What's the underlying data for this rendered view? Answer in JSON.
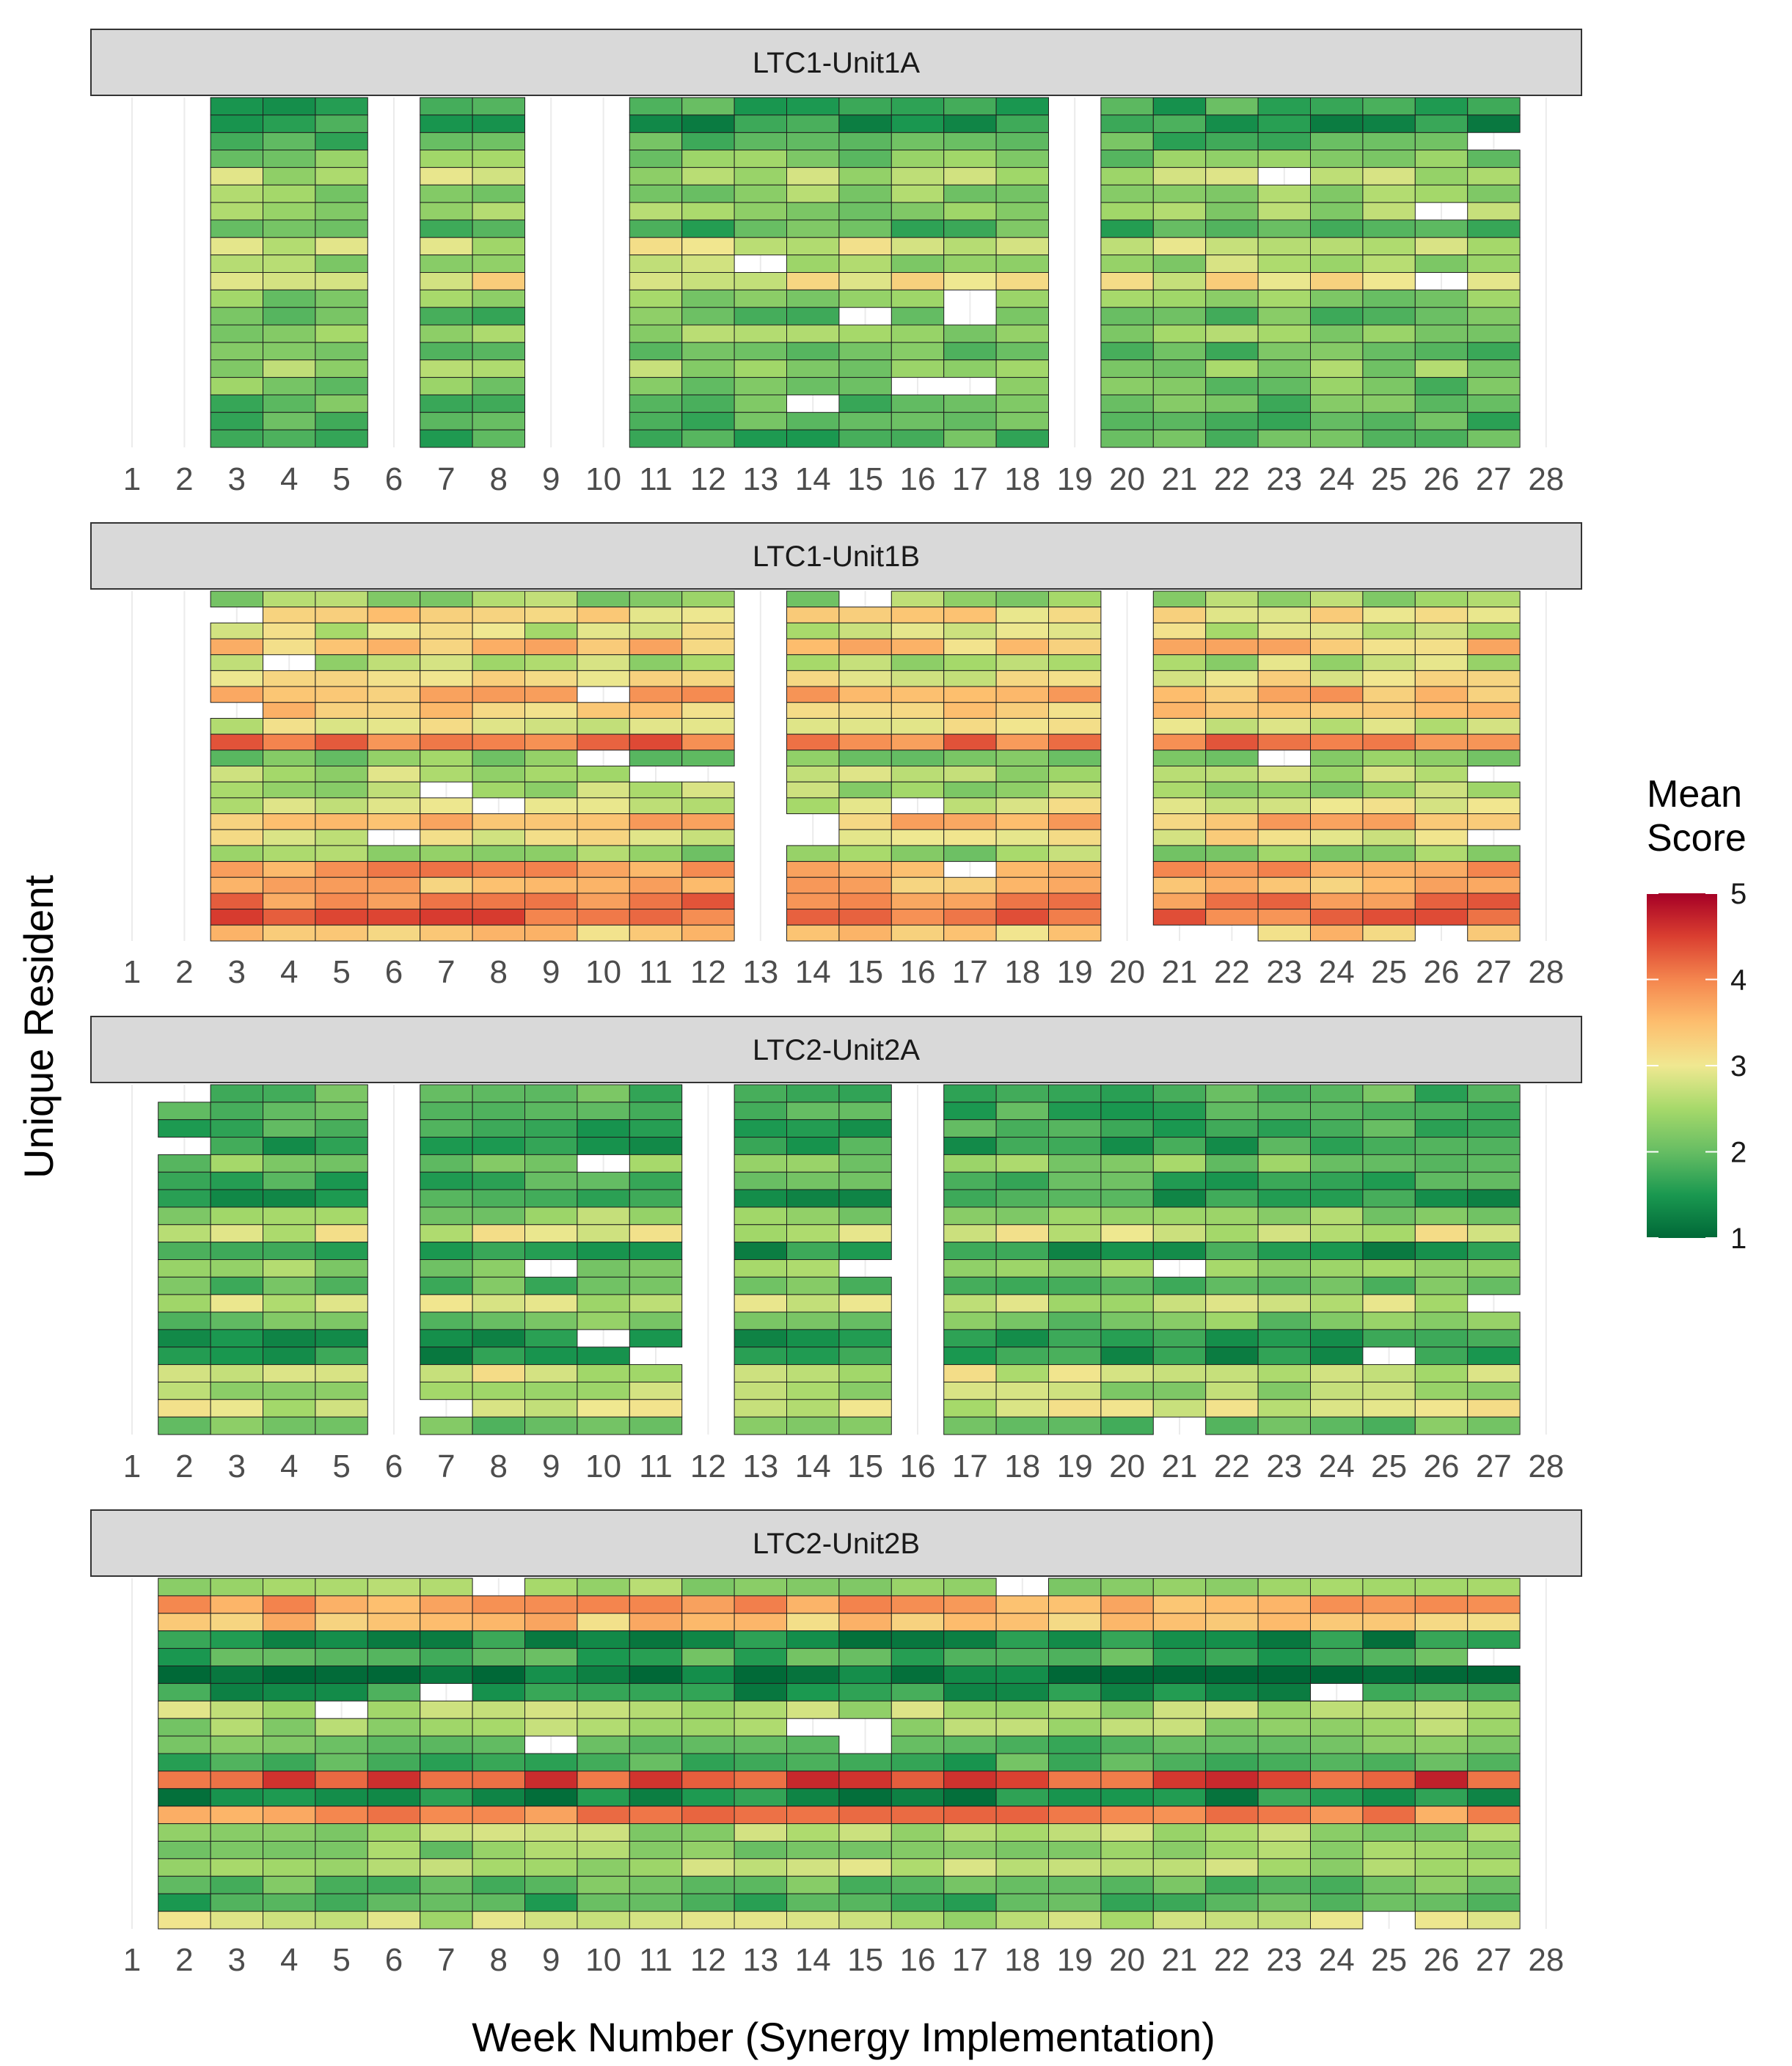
{
  "chart_data": {
    "type": "heatmap",
    "xlabel": "Week Number (Synergy Implementation)",
    "ylabel": "Unique Resident",
    "x_ticks": [
      1,
      2,
      3,
      4,
      5,
      6,
      7,
      8,
      9,
      10,
      11,
      12,
      13,
      14,
      15,
      16,
      17,
      18,
      19,
      20,
      21,
      22,
      23,
      24,
      25,
      26,
      27,
      28
    ],
    "legend": {
      "title": [
        "Mean",
        "Score"
      ],
      "min": 1,
      "max": 5,
      "ticks": [
        1,
        2,
        3,
        4,
        5
      ],
      "placement": "right",
      "palette": "RdYlGn reversed (1 = green, 5 = red)"
    },
    "facets": [
      {
        "label": "LTC1-Unit1A",
        "rows": 20,
        "weeks": [
          3,
          4,
          5,
          7,
          8,
          11,
          12,
          13,
          14,
          15,
          16,
          17,
          18,
          20,
          21,
          22,
          23,
          24,
          25,
          26,
          27
        ],
        "row_means": [
          1.7,
          1.5,
          1.9,
          2.2,
          2.6,
          2.3,
          2.4,
          1.9,
          2.8,
          2.5,
          3.0,
          2.3,
          2.0,
          2.3,
          2.0,
          2.4,
          2.1,
          2.0,
          1.9,
          1.8
        ]
      },
      {
        "label": "LTC1-Unit1B",
        "rows": 22,
        "weeks": [
          3,
          4,
          5,
          6,
          7,
          8,
          9,
          10,
          11,
          12,
          14,
          15,
          16,
          17,
          18,
          19,
          21,
          22,
          23,
          24,
          25,
          26,
          27
        ],
        "row_means": [
          2.4,
          3.2,
          2.8,
          3.4,
          2.6,
          3.0,
          3.6,
          3.4,
          2.9,
          4.1,
          2.2,
          2.6,
          2.5,
          2.8,
          3.5,
          3.0,
          2.4,
          3.8,
          3.5,
          4.0,
          4.2,
          3.3
        ]
      },
      {
        "label": "LTC2-Unit2A",
        "rows": 20,
        "weeks": [
          2,
          3,
          4,
          5,
          7,
          8,
          9,
          10,
          11,
          13,
          14,
          15,
          17,
          18,
          19,
          20,
          21,
          22,
          23,
          24,
          25,
          26,
          27
        ],
        "row_means": [
          1.9,
          1.8,
          1.7,
          1.6,
          2.2,
          1.8,
          1.6,
          2.4,
          2.8,
          1.5,
          2.4,
          2.0,
          2.7,
          2.1,
          1.6,
          1.5,
          2.8,
          2.5,
          2.8,
          2.1
        ]
      },
      {
        "label": "LTC2-Unit2B",
        "rows": 20,
        "weeks": [
          2,
          3,
          4,
          5,
          6,
          7,
          8,
          9,
          10,
          11,
          12,
          13,
          14,
          15,
          16,
          17,
          18,
          19,
          20,
          21,
          22,
          23,
          24,
          25,
          26,
          27
        ],
        "row_means": [
          2.3,
          3.7,
          3.4,
          1.4,
          1.8,
          1.1,
          1.5,
          2.6,
          2.4,
          2.0,
          1.8,
          4.4,
          1.4,
          3.9,
          2.5,
          2.3,
          2.6,
          2.0,
          1.8,
          2.7
        ]
      }
    ]
  }
}
